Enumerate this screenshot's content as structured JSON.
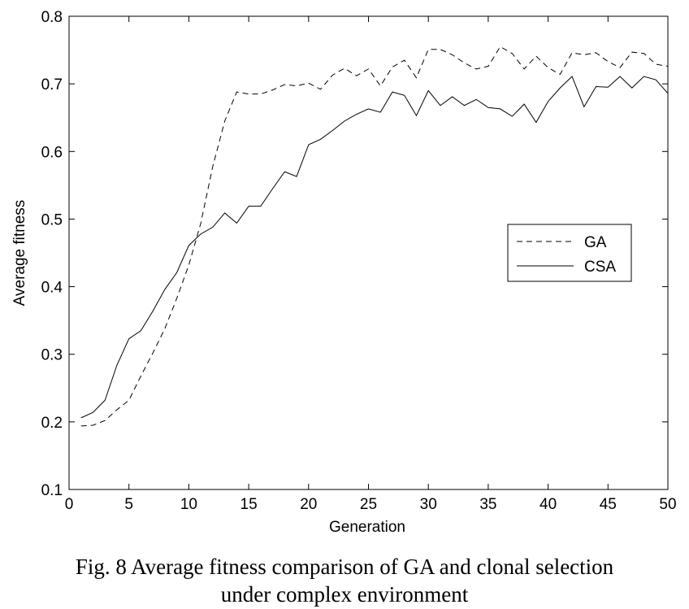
{
  "caption": {
    "line1": "Fig. 8 Average fitness comparison of GA and clonal selection",
    "line2": "under complex environment"
  },
  "chart_data": {
    "type": "line",
    "xlabel": "Generation",
    "ylabel": "Average fitness",
    "xlim": [
      0,
      50
    ],
    "ylim": [
      0.1,
      0.8
    ],
    "xticks": [
      0,
      5,
      10,
      15,
      20,
      25,
      30,
      35,
      40,
      45,
      50
    ],
    "yticks": [
      0.1,
      0.2,
      0.3,
      0.4,
      0.5,
      0.6,
      0.7,
      0.8
    ],
    "grid": false,
    "legend_position": "right",
    "x": [
      1,
      2,
      3,
      4,
      5,
      6,
      7,
      8,
      9,
      10,
      11,
      12,
      13,
      14,
      15,
      16,
      17,
      18,
      19,
      20,
      21,
      22,
      23,
      24,
      25,
      26,
      27,
      28,
      29,
      30,
      31,
      32,
      33,
      34,
      35,
      36,
      37,
      38,
      39,
      40,
      41,
      42,
      43,
      44,
      45,
      46,
      47,
      48,
      49,
      50
    ],
    "series": [
      {
        "name": "GA",
        "style": "dashed",
        "color": "#000000",
        "values": [
          0.194,
          0.195,
          0.202,
          0.218,
          0.232,
          0.268,
          0.302,
          0.338,
          0.383,
          0.432,
          0.494,
          0.578,
          0.645,
          0.688,
          0.685,
          0.685,
          0.691,
          0.699,
          0.697,
          0.701,
          0.692,
          0.713,
          0.723,
          0.712,
          0.722,
          0.697,
          0.725,
          0.735,
          0.709,
          0.751,
          0.751,
          0.743,
          0.731,
          0.722,
          0.726,
          0.755,
          0.745,
          0.722,
          0.741,
          0.724,
          0.714,
          0.746,
          0.743,
          0.746,
          0.733,
          0.724,
          0.747,
          0.745,
          0.729,
          0.726
        ]
      },
      {
        "name": "CSA",
        "style": "solid",
        "color": "#000000",
        "values": [
          0.206,
          0.214,
          0.232,
          0.284,
          0.323,
          0.335,
          0.364,
          0.396,
          0.421,
          0.461,
          0.478,
          0.488,
          0.509,
          0.494,
          0.519,
          0.519,
          0.545,
          0.57,
          0.563,
          0.61,
          0.618,
          0.631,
          0.645,
          0.655,
          0.663,
          0.658,
          0.688,
          0.683,
          0.653,
          0.69,
          0.668,
          0.681,
          0.668,
          0.677,
          0.665,
          0.663,
          0.652,
          0.67,
          0.643,
          0.674,
          0.694,
          0.711,
          0.666,
          0.696,
          0.695,
          0.711,
          0.694,
          0.711,
          0.706,
          0.686
        ]
      }
    ]
  }
}
